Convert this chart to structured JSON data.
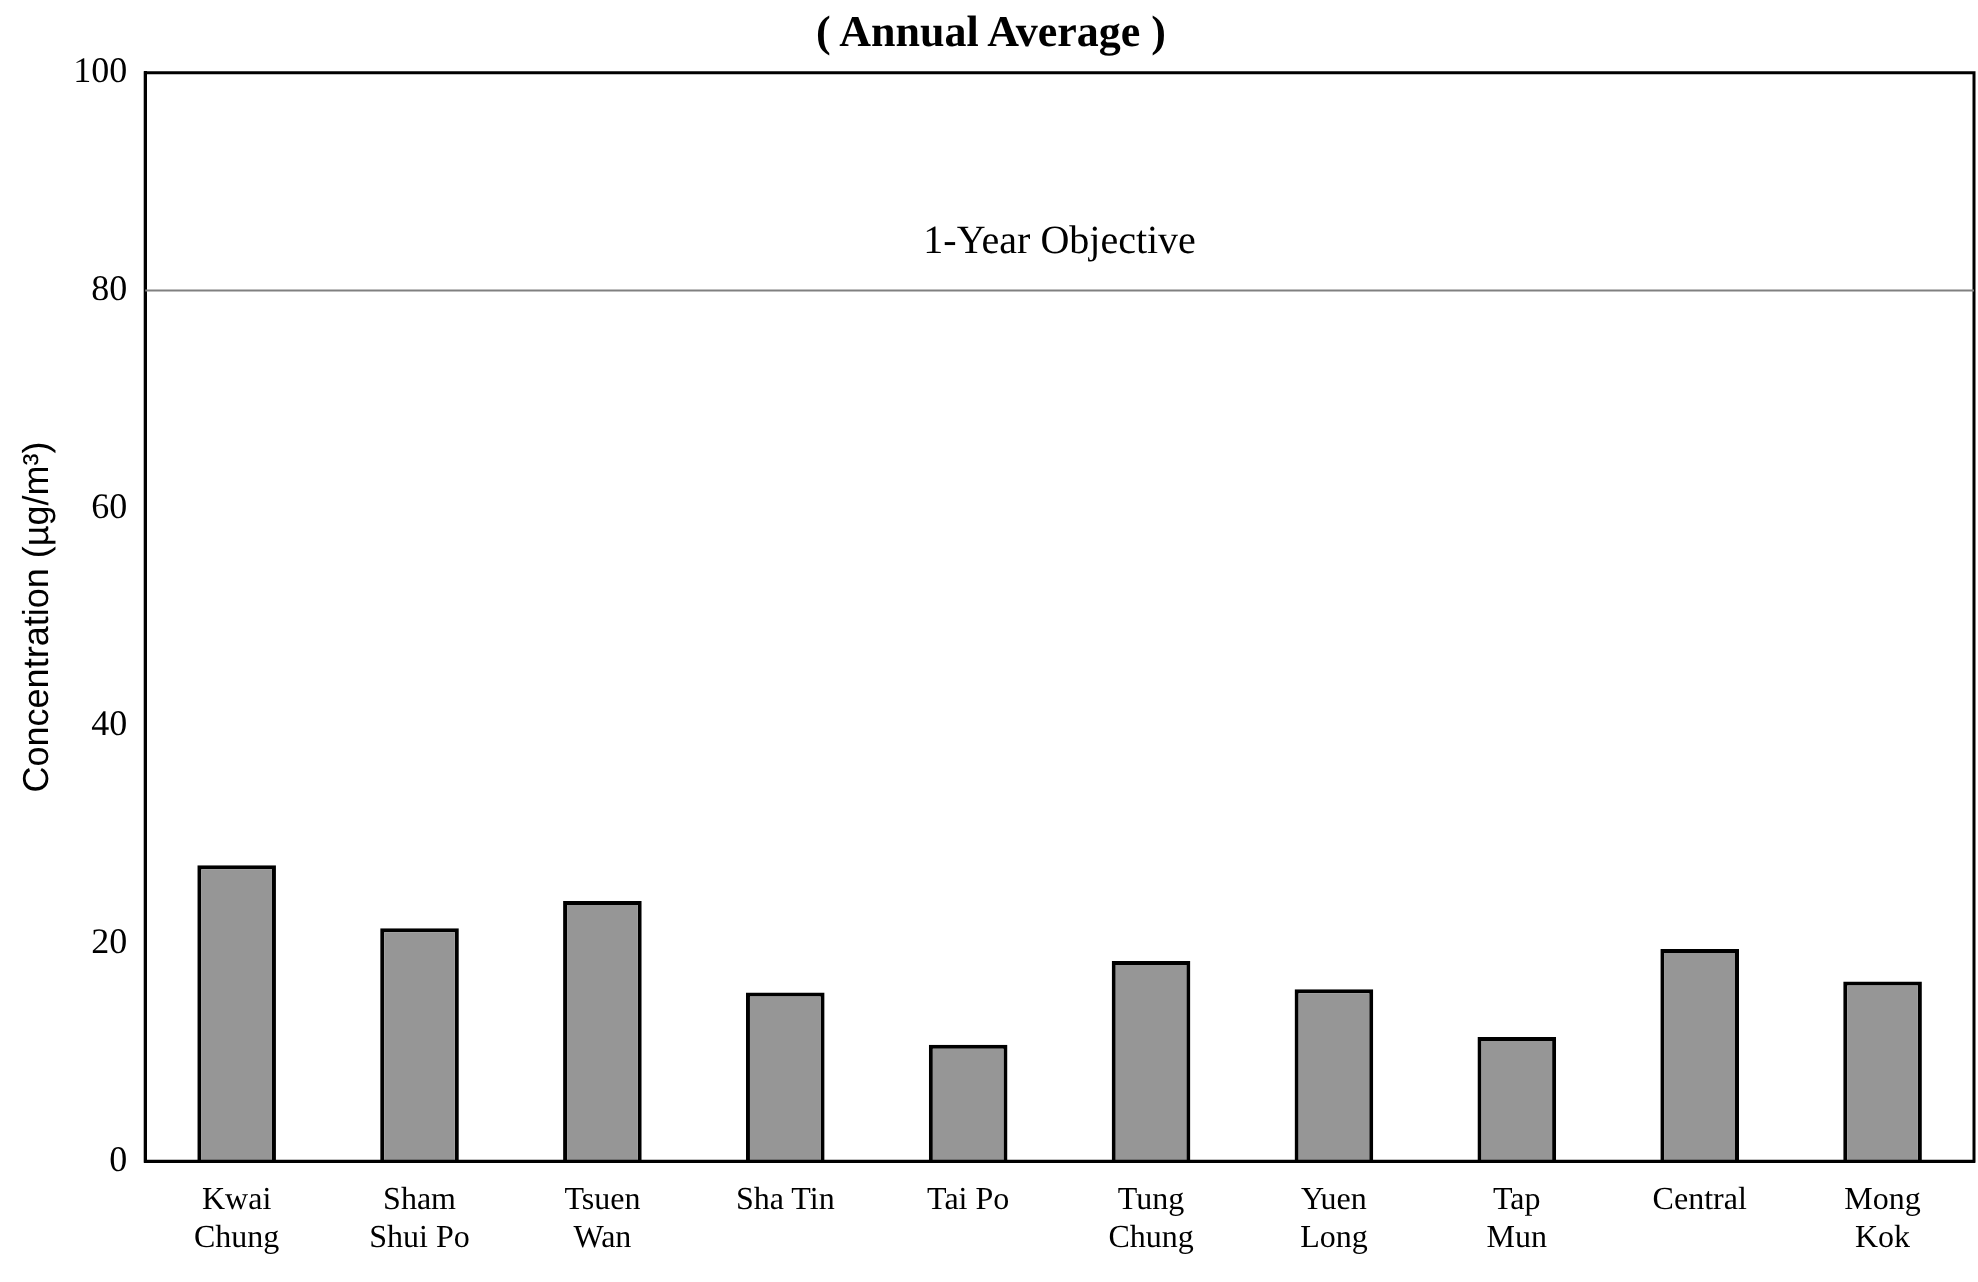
{
  "chart_data": {
    "type": "bar",
    "title": "( Annual Average )",
    "ylabel": "Concentration (µg/m³)",
    "categories": [
      "Kwai\nChung",
      "Sham\nShui Po",
      "Tsuen\nWan",
      "Sha Tin",
      "Tai Po",
      "Tung\nChung",
      "Yuen\nLong",
      "Tap\nMun",
      "Central",
      "Mong\nKok"
    ],
    "values": [
      27.2,
      21.4,
      23.9,
      15.5,
      10.7,
      18.4,
      15.8,
      11.4,
      19.5,
      16.5
    ],
    "color": "#969696",
    "ylim": [
      0,
      100
    ],
    "yticks": [
      0,
      20,
      40,
      60,
      80,
      100
    ],
    "grid": false,
    "legend": false,
    "ref_lines": [
      {
        "axis": "y",
        "value": 80,
        "label": "1-Year Objective",
        "color": "#808080"
      }
    ]
  }
}
